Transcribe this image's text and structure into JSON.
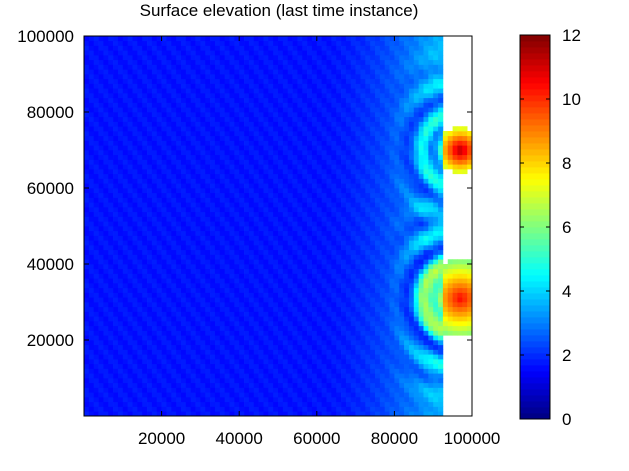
{
  "chart_data": {
    "type": "heatmap",
    "title": "Surface elevation (last time instance)",
    "xlabel": "",
    "ylabel": "",
    "xlim": [
      0,
      100000
    ],
    "ylim": [
      0,
      100000
    ],
    "x_ticks": [
      20000,
      40000,
      60000,
      80000,
      100000
    ],
    "y_ticks": [
      20000,
      40000,
      60000,
      80000,
      100000
    ],
    "x_tick_labels": [
      "20000",
      "40000",
      "60000",
      "80000",
      "100000"
    ],
    "y_tick_labels": [
      "20000",
      "40000",
      "60000",
      "80000",
      "100000"
    ],
    "colormap": "jet",
    "colorbar": {
      "min": 0,
      "max": 12,
      "ticks": [
        0,
        2,
        4,
        6,
        8,
        10,
        12
      ],
      "tick_labels": [
        "0",
        "2",
        "4",
        "6",
        "8",
        "10",
        "12"
      ]
    },
    "grid": false,
    "field": {
      "background_level": 1.7,
      "ramp_start_x": 60000,
      "ramp_end_x": 90000,
      "ramp_peak_level": 3.6,
      "dry_region_start_x": 92000,
      "hotspots": [
        {
          "x": 97000,
          "y": 70000,
          "peak": 11.5,
          "radius": 6000
        },
        {
          "x": 97000,
          "y": 31000,
          "peak": 10.5,
          "radius": 10000
        }
      ]
    }
  }
}
